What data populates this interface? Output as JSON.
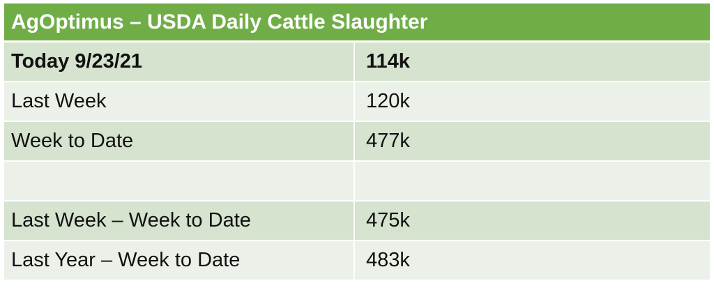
{
  "title": "AgOptimus – USDA Daily Cattle Slaughter",
  "rows": [
    {
      "label": "Today 9/23/21",
      "value": "114k"
    },
    {
      "label": "Last Week",
      "value": "120k"
    },
    {
      "label": "Week to Date",
      "value": "477k"
    },
    {
      "label": "",
      "value": ""
    },
    {
      "label": "Last Week – Week to Date",
      "value": "475k"
    },
    {
      "label": "Last Year – Week to Date",
      "value": "483k"
    }
  ],
  "colors": {
    "header": "#70ad47",
    "row_odd": "#d5e3cf",
    "row_even": "#ebf1e9"
  }
}
